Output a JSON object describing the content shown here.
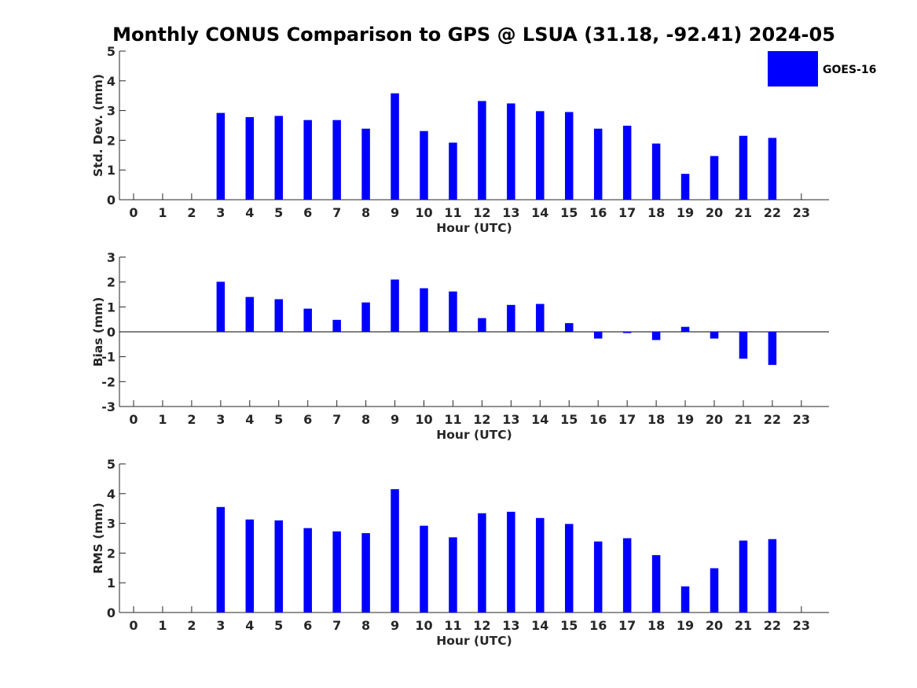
{
  "chart_data": {
    "type": "bar",
    "title": "Monthly CONUS Comparison to GPS @ LSUA (31.18, -92.41) 2024-05",
    "legend": {
      "label": "GOES-16",
      "color": "#0000FF",
      "position": "top-right"
    },
    "categories": [
      "0",
      "1",
      "2",
      "3",
      "4",
      "5",
      "6",
      "7",
      "8",
      "9",
      "10",
      "11",
      "12",
      "13",
      "14",
      "15",
      "16",
      "17",
      "18",
      "19",
      "20",
      "21",
      "22",
      "23"
    ],
    "panels": [
      {
        "id": "std",
        "ylabel": "Std. Dev. (mm)",
        "xlabel": "Hour (UTC)",
        "ylim": [
          0,
          5
        ],
        "yticks": [
          "0",
          "1",
          "2",
          "3",
          "4",
          "5"
        ],
        "values": [
          null,
          null,
          null,
          2.92,
          2.78,
          2.82,
          2.68,
          2.68,
          2.39,
          3.58,
          2.31,
          1.92,
          3.32,
          3.24,
          2.98,
          2.95,
          2.39,
          2.49,
          1.89,
          0.87,
          1.47,
          2.15,
          2.08,
          null
        ]
      },
      {
        "id": "bias",
        "ylabel": "Bias (mm)",
        "xlabel": "Hour (UTC)",
        "ylim": [
          -3,
          3
        ],
        "yticks": [
          "-3",
          "-2",
          "-1",
          "0",
          "1",
          "2",
          "3"
        ],
        "values": [
          null,
          null,
          null,
          2.01,
          1.4,
          1.31,
          0.93,
          0.48,
          1.18,
          2.1,
          1.75,
          1.62,
          0.55,
          1.08,
          1.12,
          0.35,
          -0.27,
          -0.05,
          -0.33,
          0.2,
          -0.27,
          -1.08,
          -1.33,
          null
        ]
      },
      {
        "id": "rms",
        "ylabel": "RMS (mm)",
        "xlabel": "Hour (UTC)",
        "ylim": [
          0,
          5
        ],
        "yticks": [
          "0",
          "1",
          "2",
          "3",
          "4",
          "5"
        ],
        "values": [
          null,
          null,
          null,
          3.55,
          3.13,
          3.1,
          2.84,
          2.73,
          2.67,
          4.15,
          2.92,
          2.53,
          3.34,
          3.39,
          3.18,
          2.98,
          2.39,
          2.5,
          1.93,
          0.88,
          1.49,
          2.42,
          2.47,
          null
        ]
      }
    ]
  }
}
